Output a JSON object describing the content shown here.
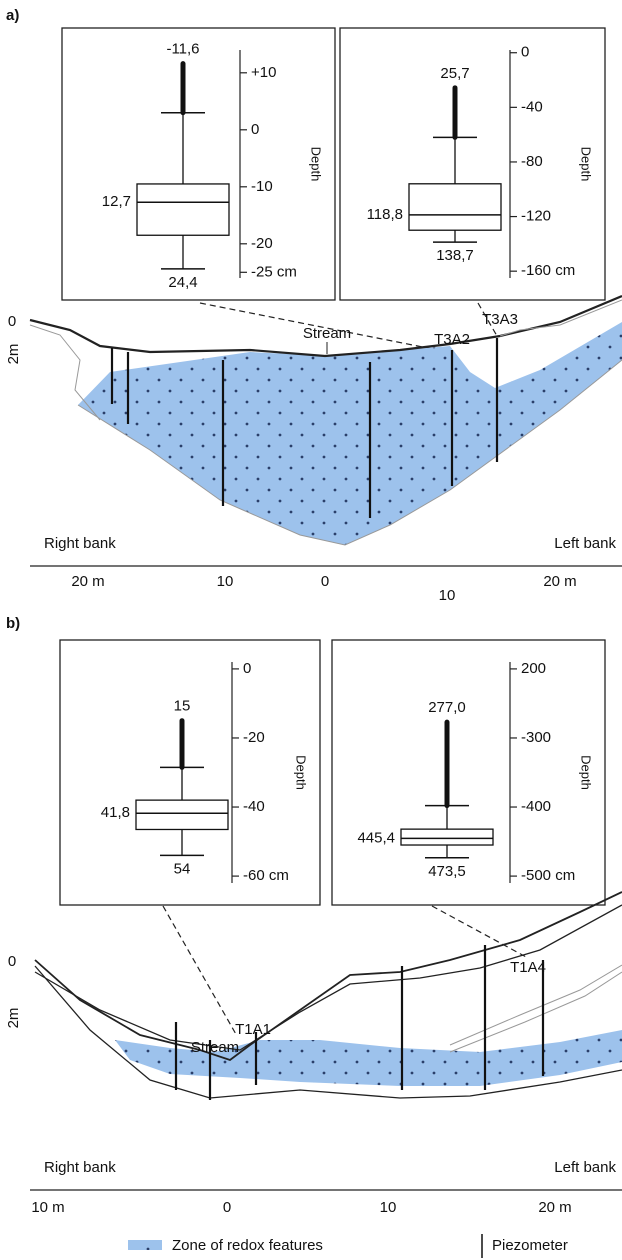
{
  "panels": [
    {
      "label": "a)",
      "stream": "Stream",
      "piezometers": [
        "T3A2",
        "T3A3"
      ],
      "right_bank": "Right bank",
      "left_bank": "Left bank",
      "depth_zero": "0",
      "depth_mark": "2m",
      "x_axis": [
        "20 m",
        "10",
        "0",
        "10",
        "20 m"
      ]
    },
    {
      "label": "b)",
      "stream": "Stream",
      "piezometers": [
        "T1A1",
        "T1A4"
      ],
      "right_bank": "Right bank",
      "left_bank": "Left bank",
      "depth_zero": "0",
      "depth_mark": "2m",
      "x_axis": [
        "10 m",
        "0",
        "10",
        "20 m"
      ]
    }
  ],
  "chart_data": [
    {
      "type": "box",
      "ylabel": "Depth",
      "ylim": [
        14,
        -26
      ],
      "yticks": [
        {
          "value": 10,
          "label": "+10"
        },
        0,
        -10,
        -20,
        {
          "value": -25,
          "label": "-25 cm"
        }
      ],
      "min": -24.4,
      "q1": -18.5,
      "median": -12.7,
      "q3": -9.5,
      "whisker_high": 3,
      "max": 11.6,
      "value_labels": {
        "min": "24,4",
        "median": "12,7",
        "max": "-11,6"
      }
    },
    {
      "type": "box",
      "ylabel": "Depth",
      "ylim": [
        2,
        -165
      ],
      "yticks": [
        0,
        -40,
        -80,
        -120,
        {
          "value": -160,
          "label": "-160 cm"
        }
      ],
      "min": -138.7,
      "q1": -130,
      "median": -118.8,
      "q3": -96,
      "whisker_high": -62,
      "max": -25.7,
      "value_labels": {
        "min": "138,7",
        "median": "118,8",
        "max": "25,7"
      }
    },
    {
      "type": "box",
      "ylabel": "Depth",
      "ylim": [
        2,
        -62
      ],
      "yticks": [
        0,
        -20,
        -40,
        {
          "value": -60,
          "label": "-60 cm"
        }
      ],
      "min": -54,
      "q1": -46.5,
      "median": -41.8,
      "q3": -38,
      "whisker_high": -28.5,
      "max": -15,
      "value_labels": {
        "min": "54",
        "median": "41,8",
        "max": "15"
      }
    },
    {
      "type": "box",
      "ylabel": "Depth",
      "ylim": [
        -190,
        -510
      ],
      "yticks": [
        {
          "value": -200,
          "label": "200"
        },
        -300,
        -400,
        {
          "value": -500,
          "label": "-500 cm"
        }
      ],
      "min": -473.5,
      "q1": -455,
      "median": -445.4,
      "q3": -432,
      "whisker_high": -398,
      "max": -277,
      "value_labels": {
        "min": "473,5",
        "median": "445,4",
        "max": "277,0"
      }
    }
  ],
  "legend": {
    "zone": "Zone of redox features",
    "piezometer": "Piezometer"
  }
}
